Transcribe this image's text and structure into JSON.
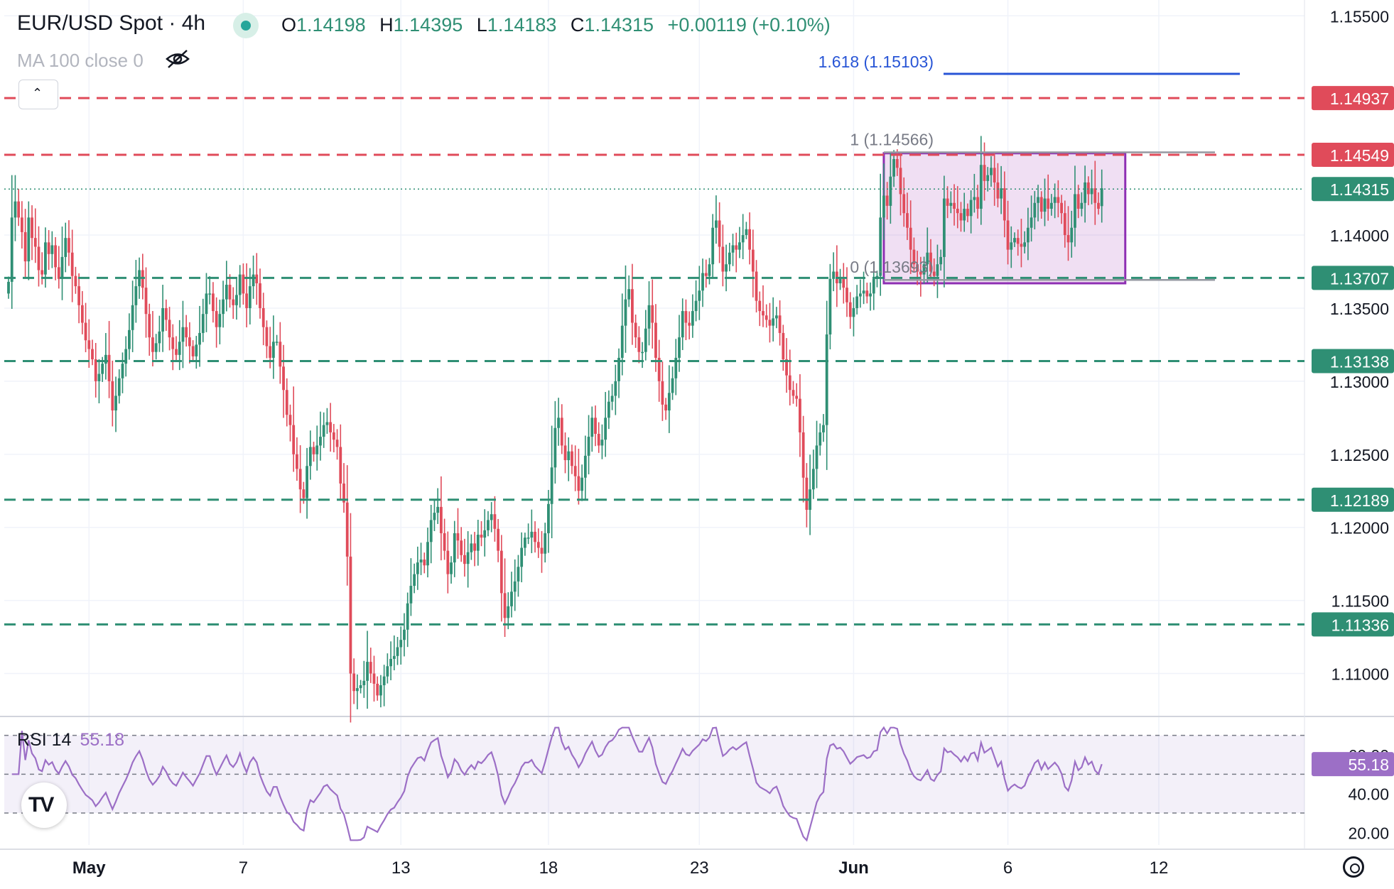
{
  "header": {
    "title": "EUR/USD Spot · 4h",
    "ohlc": {
      "o_label": "O",
      "o_value": "1.14198",
      "h_label": "H",
      "h_value": "1.14395",
      "l_label": "L",
      "l_value": "1.14183",
      "c_label": "C",
      "c_value": "1.14315",
      "change": "+0.00119 (+0.10%)"
    },
    "ma_label": "MA 100 close 0"
  },
  "rsi": {
    "label": "RSI 14",
    "value": "55.18"
  },
  "colors": {
    "bull": "#2f8f74",
    "bear": "#e04b5a",
    "rsi_line": "#9c6fc6",
    "box": "#8e2fb3",
    "fib_blue": "#2855d6"
  },
  "chart_data": {
    "type": "candlestick",
    "title": "EUR/USD Spot · 4h",
    "y_axis": {
      "range": [
        1.1075,
        1.1555
      ],
      "ticks": [
        "1.15500",
        "1.14000",
        "1.13500",
        "1.13000",
        "1.12500",
        "1.12000",
        "1.11500",
        "1.11000"
      ]
    },
    "x_axis": {
      "ticks": [
        {
          "label": "May",
          "index": 24
        },
        {
          "label": "7",
          "index": 70
        },
        {
          "label": "13",
          "index": 117
        },
        {
          "label": "18",
          "index": 161
        },
        {
          "label": "23",
          "index": 206
        },
        {
          "label": "Jun",
          "index": 252
        },
        {
          "label": "6",
          "index": 298
        },
        {
          "label": "12",
          "index": 343
        }
      ]
    },
    "close": [
      1.1368,
      1.1412,
      1.1423,
      1.1412,
      1.1402,
      1.1382,
      1.1412,
      1.1398,
      1.1392,
      1.1376,
      1.1373,
      1.1395,
      1.1387,
      1.1393,
      1.1378,
      1.137,
      1.1385,
      1.1398,
      1.1388,
      1.1372,
      1.1365,
      1.1352,
      1.134,
      1.1328,
      1.1322,
      1.1315,
      1.13,
      1.1305,
      1.1312,
      1.1318,
      1.13,
      1.128,
      1.129,
      1.1302,
      1.1312,
      1.1322,
      1.1335,
      1.1352,
      1.1365,
      1.1376,
      1.1364,
      1.1346,
      1.133,
      1.132,
      1.1326,
      1.1334,
      1.135,
      1.1342,
      1.133,
      1.1322,
      1.1318,
      1.1327,
      1.1337,
      1.133,
      1.1324,
      1.1317,
      1.1325,
      1.1333,
      1.1346,
      1.136,
      1.136,
      1.1348,
      1.1337,
      1.1346,
      1.1356,
      1.1366,
      1.1356,
      1.1352,
      1.1359,
      1.1373,
      1.136,
      1.135,
      1.1365,
      1.1373,
      1.1367,
      1.135,
      1.1337,
      1.1324,
      1.1316,
      1.1327,
      1.1327,
      1.131,
      1.1294,
      1.1277,
      1.127,
      1.125,
      1.124,
      1.1226,
      1.122,
      1.1242,
      1.1255,
      1.125,
      1.1256,
      1.1262,
      1.127,
      1.1272,
      1.1265,
      1.126,
      1.1255,
      1.123,
      1.1217,
      1.118,
      1.11,
      1.1088,
      1.109,
      1.1092,
      1.1095,
      1.1108,
      1.11,
      1.1093,
      1.1085,
      1.1092,
      1.1098,
      1.1105,
      1.111,
      1.1112,
      1.1118,
      1.1123,
      1.113,
      1.1148,
      1.116,
      1.1168,
      1.1176,
      1.1178,
      1.1174,
      1.119,
      1.1205,
      1.121,
      1.1214,
      1.1196,
      1.1184,
      1.1168,
      1.1176,
      1.1196,
      1.1191,
      1.1181,
      1.1175,
      1.1183,
      1.1189,
      1.1184,
      1.1195,
      1.1193,
      1.1198,
      1.1205,
      1.1209,
      1.1199,
      1.1184,
      1.1155,
      1.1138,
      1.1146,
      1.1156,
      1.1163,
      1.1173,
      1.1186,
      1.1193,
      1.1193,
      1.1197,
      1.119,
      1.1186,
      1.1182,
      1.1196,
      1.1216,
      1.1241,
      1.1268,
      1.1275,
      1.1256,
      1.1246,
      1.1252,
      1.1242,
      1.1235,
      1.1225,
      1.1234,
      1.1249,
      1.1262,
      1.1275,
      1.1264,
      1.1256,
      1.126,
      1.1275,
      1.1286,
      1.129,
      1.13,
      1.1316,
      1.1338,
      1.1356,
      1.1363,
      1.134,
      1.133,
      1.132,
      1.132,
      1.1336,
      1.1352,
      1.134,
      1.1316,
      1.13,
      1.1284,
      1.128,
      1.1292,
      1.1302,
      1.1316,
      1.133,
      1.1348,
      1.134,
      1.1338,
      1.1348,
      1.1355,
      1.1362,
      1.1374,
      1.1372,
      1.138,
      1.1405,
      1.141,
      1.1392,
      1.1375,
      1.138,
      1.1388,
      1.1393,
      1.139,
      1.1395,
      1.14,
      1.1404,
      1.139,
      1.1375,
      1.1355,
      1.1348,
      1.1345,
      1.1342,
      1.1338,
      1.1343,
      1.1345,
      1.1333,
      1.1315,
      1.1304,
      1.1294,
      1.129,
      1.1288,
      1.1265,
      1.1234,
      1.1212,
      1.1226,
      1.124,
      1.1256,
      1.1265,
      1.127,
      1.1332,
      1.137,
      1.1375,
      1.1367,
      1.137,
      1.1364,
      1.1354,
      1.1344,
      1.135,
      1.1358,
      1.136,
      1.1362,
      1.1358,
      1.136,
      1.137,
      1.1372,
      1.1412,
      1.1427,
      1.142,
      1.144,
      1.1452,
      1.1446,
      1.1428,
      1.1415,
      1.1405,
      1.139,
      1.138,
      1.1375,
      1.1373,
      1.138,
      1.1388,
      1.1375,
      1.1372,
      1.138,
      1.1385,
      1.1425,
      1.142,
      1.1422,
      1.1418,
      1.1415,
      1.141,
      1.1418,
      1.1413,
      1.1424,
      1.1426,
      1.1418,
      1.1448,
      1.1437,
      1.1441,
      1.1446,
      1.1436,
      1.1425,
      1.1432,
      1.141,
      1.139,
      1.1395,
      1.1398,
      1.1394,
      1.1392,
      1.1395,
      1.1405,
      1.1412,
      1.1422,
      1.1426,
      1.1416,
      1.1425,
      1.1418,
      1.1422,
      1.1426,
      1.1422,
      1.1415,
      1.14,
      1.1395,
      1.1405,
      1.1428,
      1.1418,
      1.1422,
      1.1436,
      1.1428,
      1.1432,
      1.1422,
      1.1418,
      1.1432
    ],
    "last_open": 1.14198,
    "last_close": 1.14315,
    "horizontal_levels": [
      {
        "value": 1.14937,
        "label": "1.14937",
        "color": "#e04b5a",
        "style": "dashed"
      },
      {
        "value": 1.14549,
        "label": "1.14549",
        "color": "#e04b5a",
        "style": "dashed"
      },
      {
        "value": 1.14315,
        "label": "1.14315",
        "color": "#2f8f74",
        "style": "dotted"
      },
      {
        "value": 1.13707,
        "label": "1.13707",
        "color": "#2f8f74",
        "style": "dashed"
      },
      {
        "value": 1.13138,
        "label": "1.13138",
        "color": "#2f8f74",
        "style": "dashed"
      },
      {
        "value": 1.12189,
        "label": "1.12189",
        "color": "#2f8f74",
        "style": "dashed"
      },
      {
        "value": 1.11336,
        "label": "1.11336",
        "color": "#2f8f74",
        "style": "dashed"
      }
    ],
    "fibonacci": [
      {
        "level_label": "1.618 (1.15103)",
        "value": 1.15103,
        "color": "#2855d6"
      },
      {
        "level_label": "1 (1.14566)",
        "value": 1.14566,
        "color": "#787b86"
      },
      {
        "level_label": "0 (1.13693)",
        "value": 1.13693,
        "color": "#787b86"
      }
    ],
    "range_box": {
      "top": 1.1456,
      "bottom": 1.1367,
      "start_index": 261,
      "end_index": 333
    },
    "rsi": {
      "period": 14,
      "value": 55.18,
      "ticks": [
        "60.00",
        "40.00",
        "20.00"
      ],
      "range": [
        15,
        75
      ],
      "levels": [
        70,
        50,
        30
      ]
    }
  }
}
